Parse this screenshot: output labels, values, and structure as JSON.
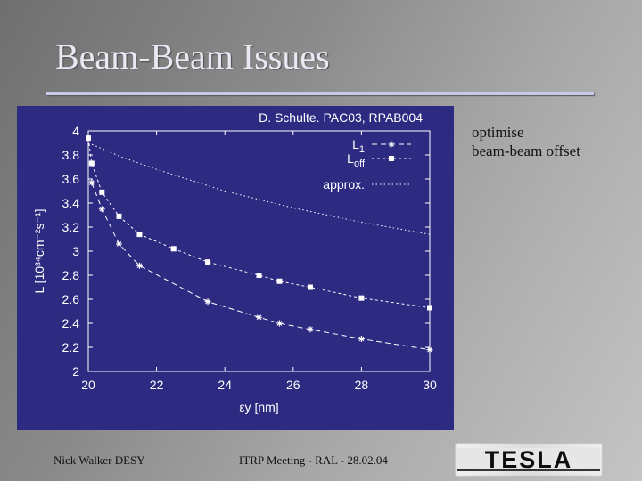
{
  "slide": {
    "title": "Beam-Beam Issues",
    "side_note": [
      "optimise",
      "beam-beam offset"
    ],
    "footer_left": "Nick Walker DESY",
    "footer_center": "ITRP Meeting - RAL - 28.02.04",
    "logo_text": "TESLA"
  },
  "colors": {
    "chart_background": "#2d2a82",
    "plot_foreground": "#ffffff",
    "title_rule": "#c7c8ec"
  },
  "chart_data": {
    "type": "line",
    "title": "D. Schulte. PAC03, RPAB004",
    "xlabel": "εy [nm]",
    "ylabel": "L [10³⁴cm⁻²s⁻¹]",
    "xlim": [
      20,
      30
    ],
    "ylim": [
      2,
      4
    ],
    "xticks": [
      "20",
      "22",
      "24",
      "26",
      "28",
      "30"
    ],
    "yticks": [
      "2",
      "2.2",
      "2.4",
      "2.6",
      "2.8",
      "3",
      "3.2",
      "3.4",
      "3.6",
      "3.8",
      "4"
    ],
    "grid": false,
    "legend_position": "top-right",
    "series": [
      {
        "name": "L1",
        "marker": "star",
        "line": "dashed",
        "x": [
          20.1,
          20.4,
          20.9,
          21.5,
          23.5,
          25.0,
          25.6,
          26.5,
          28.0,
          30.0
        ],
        "values": [
          3.57,
          3.35,
          3.06,
          2.88,
          2.58,
          2.45,
          2.4,
          2.35,
          2.27,
          2.18
        ]
      },
      {
        "name": "Loff",
        "marker": "square",
        "line": "dotted",
        "x": [
          20.0,
          20.1,
          20.4,
          20.9,
          21.5,
          22.5,
          23.5,
          25.0,
          25.6,
          26.5,
          28.0,
          30.0
        ],
        "values": [
          3.94,
          3.73,
          3.49,
          3.29,
          3.14,
          3.02,
          2.91,
          2.8,
          2.75,
          2.7,
          2.61,
          2.53
        ]
      },
      {
        "name": "approx.",
        "marker": "none",
        "line": "fine-dotted",
        "x": [
          20,
          21,
          22,
          23,
          24,
          25,
          26,
          27,
          28,
          29,
          30
        ],
        "values": [
          3.9,
          3.78,
          3.68,
          3.59,
          3.5,
          3.43,
          3.36,
          3.3,
          3.24,
          3.19,
          3.14
        ]
      }
    ]
  }
}
